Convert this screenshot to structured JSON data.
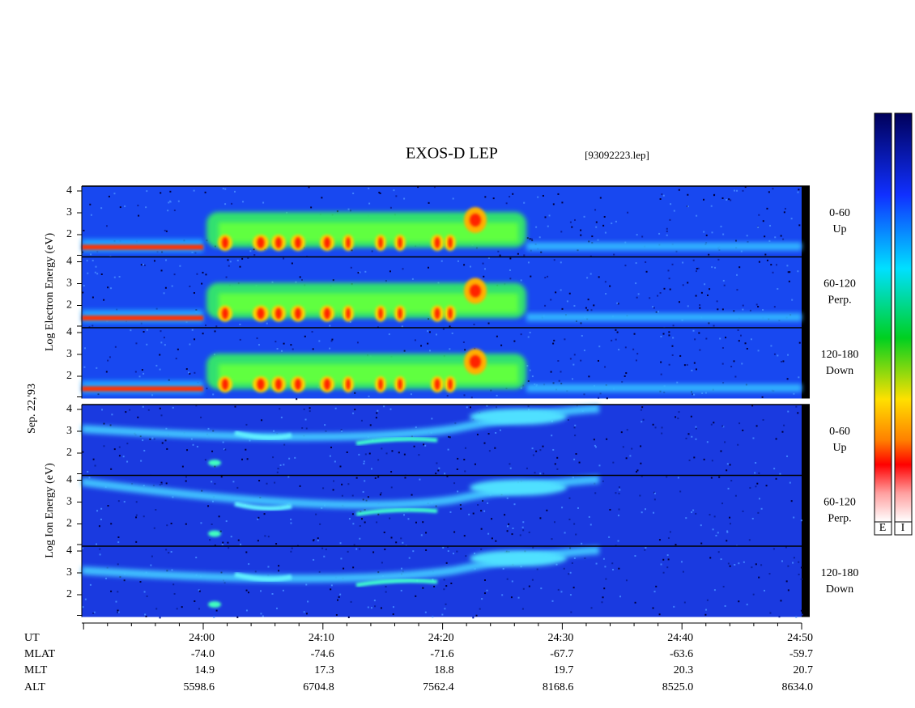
{
  "title": "EXOS-D LEP",
  "file": "[93092223.lep]",
  "date": "Sep. 22,'93",
  "groups": [
    {
      "label": "Log Electron Energy (eV)",
      "panels": [
        {
          "angle": "0-60",
          "direction": "Up"
        },
        {
          "angle": "60-120",
          "direction": "Perp."
        },
        {
          "angle": "120-180",
          "direction": "Down"
        }
      ]
    },
    {
      "label": "Log Ion Energy (eV)",
      "panels": [
        {
          "angle": "0-60",
          "direction": "Up"
        },
        {
          "angle": "60-120",
          "direction": "Perp."
        },
        {
          "angle": "120-180",
          "direction": "Down"
        }
      ]
    }
  ],
  "yticks": [
    2,
    3,
    4
  ],
  "colorbar_labels": [
    "E",
    "I"
  ],
  "footer": {
    "labels": [
      "UT",
      "MLAT",
      "MLT",
      "ALT"
    ],
    "columns": [
      [
        "24:00",
        "-74.0",
        "14.9",
        "5598.6"
      ],
      [
        "24:10",
        "-74.6",
        "17.3",
        "6704.8"
      ],
      [
        "24:20",
        "-71.6",
        "18.8",
        "7562.4"
      ],
      [
        "24:30",
        "-67.7",
        "19.7",
        "8168.6"
      ],
      [
        "24:40",
        "-63.6",
        "20.3",
        "8525.0"
      ],
      [
        "24:50",
        "-59.7",
        "20.7",
        "8634.0"
      ]
    ]
  }
}
